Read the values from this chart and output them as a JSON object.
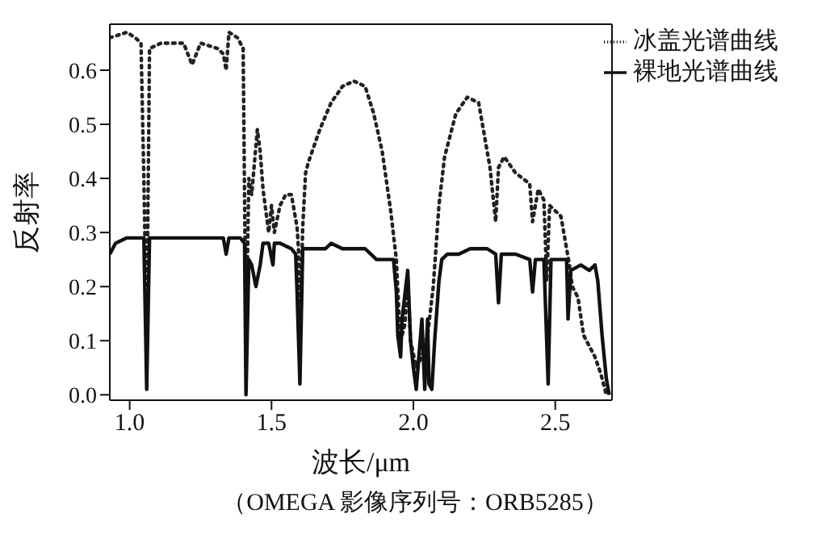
{
  "chart_data": {
    "type": "line",
    "xlabel": "波长/μm",
    "ylabel": "反射率",
    "xlim": [
      0.93,
      2.7
    ],
    "ylim": [
      -0.01,
      0.685
    ],
    "xticks": [
      {
        "value": 1,
        "label": "1.0"
      },
      {
        "value": 1.5,
        "label": "1.5"
      },
      {
        "value": 2,
        "label": "2.0"
      },
      {
        "value": 2.5,
        "label": "2.5"
      }
    ],
    "yticks": [
      {
        "value": 0,
        "label": "0.0"
      },
      0.1,
      0.2,
      0.3,
      0.4,
      0.5,
      0.6
    ],
    "legend": "top right",
    "marker": "none",
    "annotations": [
      "（OMEGA 影像序列号：ORB5285）"
    ],
    "series": [
      {
        "name": "冰盖光谱曲线",
        "color": "#222222",
        "line_style": "dotted",
        "x": [
          0.93,
          0.99,
          1.02,
          1.04,
          1.05,
          1.06,
          1.07,
          1.11,
          1.19,
          1.22,
          1.25,
          1.31,
          1.33,
          1.34,
          1.35,
          1.38,
          1.4,
          1.41,
          1.42,
          1.43,
          1.45,
          1.46,
          1.47,
          1.49,
          1.5,
          1.51,
          1.53,
          1.55,
          1.57,
          1.59,
          1.595,
          1.6,
          1.61,
          1.62,
          1.63,
          1.67,
          1.71,
          1.75,
          1.79,
          1.83,
          1.86,
          1.89,
          1.92,
          1.94,
          1.95,
          1.955,
          1.97,
          1.98,
          1.99,
          2.01,
          2.03,
          2.05,
          2.07,
          2.09,
          2.11,
          2.15,
          2.19,
          2.23,
          2.27,
          2.29,
          2.3,
          2.32,
          2.36,
          2.41,
          2.42,
          2.44,
          2.46,
          2.47,
          2.48,
          2.52,
          2.55,
          2.56,
          2.58,
          2.6,
          2.64,
          2.66,
          2.68
        ],
        "values": [
          0.66,
          0.67,
          0.66,
          0.65,
          0.4,
          0.11,
          0.64,
          0.65,
          0.65,
          0.61,
          0.65,
          0.64,
          0.63,
          0.6,
          0.67,
          0.66,
          0.64,
          0.09,
          0.4,
          0.37,
          0.49,
          0.45,
          0.38,
          0.3,
          0.35,
          0.3,
          0.35,
          0.37,
          0.37,
          0.31,
          0.27,
          0.11,
          0.31,
          0.41,
          0.43,
          0.49,
          0.54,
          0.57,
          0.58,
          0.57,
          0.52,
          0.45,
          0.34,
          0.25,
          0.14,
          0.1,
          0.13,
          0.22,
          0.1,
          0.05,
          0.07,
          0.11,
          0.2,
          0.35,
          0.44,
          0.52,
          0.55,
          0.54,
          0.42,
          0.32,
          0.42,
          0.44,
          0.41,
          0.39,
          0.32,
          0.38,
          0.36,
          0.21,
          0.35,
          0.33,
          0.24,
          0.2,
          0.18,
          0.11,
          0.07,
          0.04,
          0.0
        ]
      },
      {
        "name": "裸地光谱曲线",
        "color": "#111111",
        "line_style": "solid",
        "x": [
          0.93,
          0.95,
          0.99,
          1.05,
          1.06,
          1.07,
          1.11,
          1.19,
          1.27,
          1.33,
          1.34,
          1.35,
          1.39,
          1.405,
          1.41,
          1.42,
          1.43,
          1.445,
          1.46,
          1.47,
          1.49,
          1.505,
          1.51,
          1.53,
          1.57,
          1.585,
          1.59,
          1.6,
          1.61,
          1.65,
          1.69,
          1.71,
          1.75,
          1.83,
          1.87,
          1.93,
          1.94,
          1.945,
          1.955,
          1.96,
          1.98,
          1.99,
          2.0,
          2.01,
          2.03,
          2.04,
          2.05,
          2.055,
          2.065,
          2.075,
          2.09,
          2.1,
          2.12,
          2.16,
          2.2,
          2.26,
          2.29,
          2.3,
          2.31,
          2.36,
          2.41,
          2.42,
          2.43,
          2.46,
          2.475,
          2.485,
          2.54,
          2.545,
          2.555,
          2.59,
          2.62,
          2.64,
          2.65,
          2.665,
          2.68,
          2.69
        ],
        "values": [
          0.26,
          0.28,
          0.29,
          0.29,
          0.01,
          0.29,
          0.29,
          0.29,
          0.29,
          0.29,
          0.26,
          0.29,
          0.29,
          0.28,
          0.0,
          0.25,
          0.24,
          0.2,
          0.24,
          0.28,
          0.28,
          0.24,
          0.28,
          0.28,
          0.27,
          0.26,
          0.19,
          0.02,
          0.27,
          0.27,
          0.27,
          0.28,
          0.27,
          0.27,
          0.25,
          0.25,
          0.19,
          0.11,
          0.07,
          0.14,
          0.23,
          0.1,
          0.05,
          0.01,
          0.14,
          0.01,
          0.14,
          0.02,
          0.01,
          0.1,
          0.21,
          0.25,
          0.26,
          0.26,
          0.27,
          0.27,
          0.26,
          0.17,
          0.26,
          0.26,
          0.25,
          0.19,
          0.25,
          0.25,
          0.02,
          0.25,
          0.25,
          0.14,
          0.23,
          0.24,
          0.23,
          0.24,
          0.21,
          0.11,
          0.03,
          0.0
        ]
      }
    ]
  }
}
